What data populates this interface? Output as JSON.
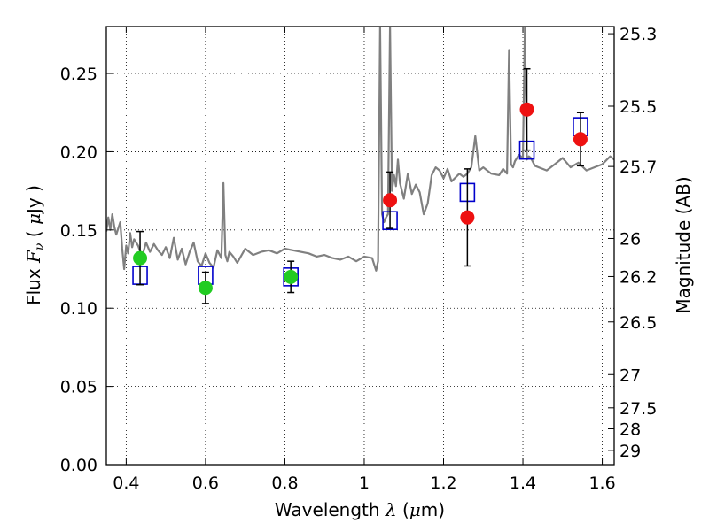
{
  "chart_data": {
    "type": "scatter",
    "title": "",
    "xlabel": {
      "prefix": "Wavelength  ",
      "symbol": "λ",
      "open": " (",
      "unit_symbol": "μ",
      "unit": "m)"
    },
    "ylabel": {
      "prefix": "Flux  ",
      "symbol_main": "F",
      "symbol_sub": "ν",
      "open": "  ( ",
      "unit_symbol": "μ",
      "unit": "Jy )"
    },
    "y2label": "Magnitude (AB)",
    "xlim": [
      0.35,
      1.63
    ],
    "ylim": [
      0.0,
      0.28
    ],
    "grid": true,
    "grid_style": "dotted",
    "x_ticks": [
      {
        "value": 0.4,
        "label": "0.4"
      },
      {
        "value": 0.6,
        "label": "0.6"
      },
      {
        "value": 0.8,
        "label": "0.8"
      },
      {
        "value": 1.0,
        "label": "1"
      },
      {
        "value": 1.2,
        "label": "1.2"
      },
      {
        "value": 1.4,
        "label": "1.4"
      },
      {
        "value": 1.6,
        "label": "1.6"
      }
    ],
    "y_ticks": [
      {
        "value": 0.0,
        "label": "0.00"
      },
      {
        "value": 0.05,
        "label": "0.05"
      },
      {
        "value": 0.1,
        "label": "0.10"
      },
      {
        "value": 0.15,
        "label": "0.15"
      },
      {
        "value": 0.2,
        "label": "0.20"
      },
      {
        "value": 0.25,
        "label": "0.25"
      }
    ],
    "mag_ticks": [
      {
        "mag": 25.3,
        "label": "25.3"
      },
      {
        "mag": 25.5,
        "label": "25.5"
      },
      {
        "mag": 25.7,
        "label": "25.7"
      },
      {
        "mag": 26.0,
        "label": "26"
      },
      {
        "mag": 26.2,
        "label": "26.2"
      },
      {
        "mag": 26.5,
        "label": "26.5"
      },
      {
        "mag": 27.0,
        "label": "27"
      },
      {
        "mag": 27.5,
        "label": "27.5"
      },
      {
        "mag": 28.0,
        "label": "28"
      },
      {
        "mag": 29.0,
        "label": "29"
      }
    ],
    "model_spectrum": {
      "name": "",
      "color": "#808080",
      "x": [
        0.35,
        0.355,
        0.36,
        0.365,
        0.37,
        0.375,
        0.38,
        0.385,
        0.39,
        0.395,
        0.4,
        0.405,
        0.41,
        0.415,
        0.42,
        0.43,
        0.44,
        0.45,
        0.46,
        0.47,
        0.48,
        0.49,
        0.5,
        0.51,
        0.52,
        0.53,
        0.54,
        0.55,
        0.56,
        0.57,
        0.58,
        0.59,
        0.6,
        0.61,
        0.62,
        0.63,
        0.64,
        0.645,
        0.65,
        0.655,
        0.66,
        0.67,
        0.68,
        0.7,
        0.72,
        0.74,
        0.76,
        0.78,
        0.8,
        0.82,
        0.84,
        0.86,
        0.88,
        0.9,
        0.92,
        0.94,
        0.96,
        0.98,
        1.0,
        1.02,
        1.03,
        1.035,
        1.04,
        1.045,
        1.05,
        1.055,
        1.06,
        1.065,
        1.07,
        1.075,
        1.08,
        1.085,
        1.09,
        1.1,
        1.11,
        1.12,
        1.13,
        1.14,
        1.15,
        1.16,
        1.17,
        1.18,
        1.19,
        1.2,
        1.21,
        1.22,
        1.24,
        1.25,
        1.26,
        1.27,
        1.28,
        1.29,
        1.3,
        1.32,
        1.34,
        1.35,
        1.36,
        1.365,
        1.37,
        1.375,
        1.38,
        1.39,
        1.4,
        1.405,
        1.41,
        1.415,
        1.42,
        1.43,
        1.44,
        1.46,
        1.48,
        1.5,
        1.52,
        1.54,
        1.56,
        1.58,
        1.6,
        1.62,
        1.63
      ],
      "y": [
        0.149,
        0.158,
        0.15,
        0.16,
        0.152,
        0.147,
        0.151,
        0.155,
        0.138,
        0.125,
        0.14,
        0.135,
        0.148,
        0.139,
        0.144,
        0.14,
        0.133,
        0.142,
        0.136,
        0.141,
        0.137,
        0.134,
        0.139,
        0.132,
        0.145,
        0.131,
        0.138,
        0.128,
        0.136,
        0.142,
        0.13,
        0.127,
        0.135,
        0.129,
        0.126,
        0.137,
        0.132,
        0.18,
        0.134,
        0.13,
        0.136,
        0.133,
        0.129,
        0.138,
        0.134,
        0.136,
        0.137,
        0.135,
        0.138,
        0.137,
        0.136,
        0.135,
        0.133,
        0.134,
        0.132,
        0.131,
        0.133,
        0.13,
        0.133,
        0.132,
        0.124,
        0.13,
        0.28,
        0.16,
        0.155,
        0.158,
        0.16,
        0.28,
        0.175,
        0.185,
        0.178,
        0.195,
        0.18,
        0.17,
        0.186,
        0.173,
        0.179,
        0.174,
        0.16,
        0.167,
        0.185,
        0.19,
        0.188,
        0.183,
        0.189,
        0.181,
        0.186,
        0.184,
        0.186,
        0.19,
        0.21,
        0.188,
        0.19,
        0.186,
        0.185,
        0.189,
        0.186,
        0.265,
        0.192,
        0.19,
        0.194,
        0.198,
        0.196,
        0.28,
        0.195,
        0.197,
        0.196,
        0.191,
        0.19,
        0.188,
        0.192,
        0.196,
        0.19,
        0.193,
        0.188,
        0.19,
        0.192,
        0.197,
        0.195
      ]
    },
    "series": [
      {
        "name": "",
        "marker": "square",
        "color": "#0000cc",
        "x": [
          0.435,
          0.6,
          0.815,
          1.065,
          1.26,
          1.41,
          1.545
        ],
        "y": [
          0.121,
          0.121,
          0.12,
          0.156,
          0.174,
          0.201,
          0.216
        ]
      },
      {
        "name": "",
        "marker": "circle",
        "color": "#22cc22",
        "x": [
          0.435,
          0.6,
          0.815
        ],
        "y": [
          0.132,
          0.113,
          0.12
        ],
        "err": [
          0.017,
          0.01,
          0.01
        ]
      },
      {
        "name": "",
        "marker": "circle",
        "color": "#ee1111",
        "x": [
          1.065,
          1.26,
          1.41,
          1.545
        ],
        "y": [
          0.169,
          0.158,
          0.227,
          0.208
        ],
        "err": [
          0.018,
          0.031,
          0.026,
          0.017
        ]
      }
    ]
  }
}
